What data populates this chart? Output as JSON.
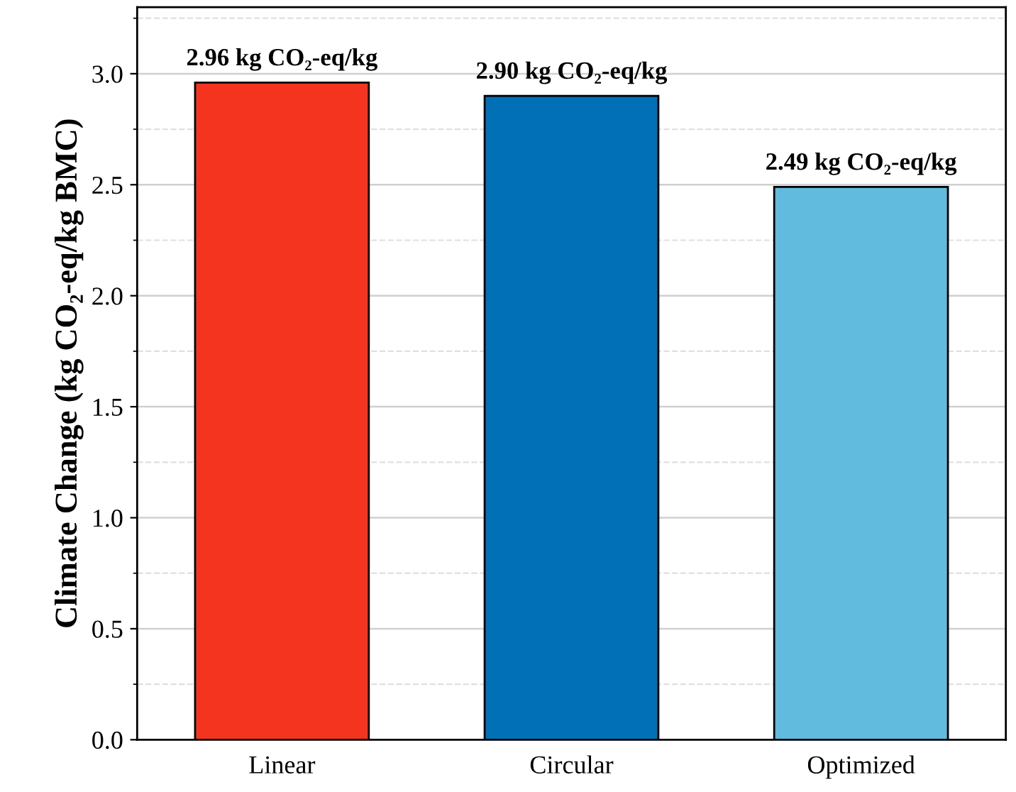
{
  "chart_data": {
    "type": "bar",
    "ylabel": "Climate Change (kg CO₂-eq/kg BMC)",
    "categories": [
      "Linear",
      "Circular",
      "Optimized"
    ],
    "values": [
      2.96,
      2.9,
      2.49
    ],
    "colors": [
      "#f5341f",
      "#0170b7",
      "#61bbdf"
    ],
    "value_labels": [
      "2.96 kg CO₂-eq/kg",
      "2.90 kg CO₂-eq/kg",
      "2.49 kg CO₂-eq/kg"
    ],
    "ylim": [
      0,
      3.3
    ],
    "yticks": [
      {
        "value": 0,
        "label": "0.0"
      },
      0.5,
      {
        "value": 1,
        "label": "1.0"
      },
      1.5,
      {
        "value": 2,
        "label": "2.0"
      },
      2.5,
      {
        "value": 3,
        "label": "3.0"
      }
    ],
    "grid": "y"
  }
}
